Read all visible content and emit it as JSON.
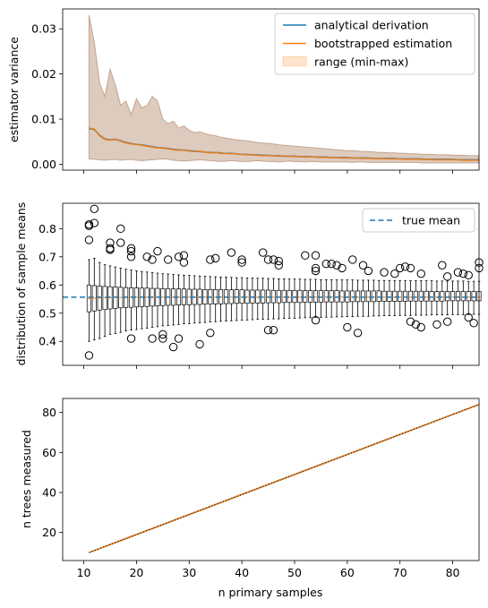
{
  "chart_data": [
    {
      "type": "line",
      "ylabel": "estimator variance",
      "xlim": [
        6,
        85
      ],
      "ylim": [
        -0.0013,
        0.0344
      ],
      "yticks": [
        "0.00",
        "0.01",
        "0.02",
        "0.03"
      ],
      "ytick_values": [
        0,
        0.01,
        0.02,
        0.03
      ],
      "legend_position": "top-right",
      "colors": {
        "analytical": "#1f77b4",
        "bootstrapped": "#ff7f0e",
        "range_fill": "#d2b9a8",
        "range_edge": "#c4a48f"
      },
      "legend": [
        "analytical derivation",
        "bootstrapped estimation",
        "range (min-max)"
      ],
      "x": [
        11,
        12,
        13,
        14,
        15,
        16,
        17,
        18,
        19,
        20,
        21,
        22,
        23,
        24,
        25,
        26,
        27,
        28,
        29,
        30,
        31,
        32,
        33,
        34,
        35,
        36,
        37,
        38,
        39,
        40,
        41,
        42,
        43,
        44,
        45,
        46,
        47,
        48,
        49,
        50,
        51,
        52,
        53,
        54,
        55,
        56,
        57,
        58,
        59,
        60,
        61,
        62,
        63,
        64,
        65,
        66,
        67,
        68,
        69,
        70,
        71,
        72,
        73,
        74,
        75,
        76,
        77,
        78,
        79,
        80,
        81,
        82,
        83,
        84,
        85
      ],
      "series": [
        {
          "name": "analytical derivation",
          "values": [
            0.0079,
            0.0077,
            0.0064,
            0.0056,
            0.0054,
            0.0055,
            0.0052,
            0.0048,
            0.0046,
            0.0044,
            0.0043,
            0.0041,
            0.0039,
            0.0037,
            0.0036,
            0.0035,
            0.0033,
            0.0032,
            0.0031,
            0.003,
            0.0029,
            0.0028,
            0.0027,
            0.0026,
            0.0026,
            0.0025,
            0.0024,
            0.0024,
            0.0023,
            0.0022,
            0.0022,
            0.0021,
            0.0021,
            0.002,
            0.002,
            0.0019,
            0.0019,
            0.0018,
            0.0018,
            0.0018,
            0.0017,
            0.0017,
            0.0017,
            0.0016,
            0.0016,
            0.0016,
            0.0015,
            0.0015,
            0.0015,
            0.0015,
            0.0014,
            0.0014,
            0.0014,
            0.0014,
            0.0013,
            0.0013,
            0.0013,
            0.0013,
            0.0013,
            0.0012,
            0.0012,
            0.0012,
            0.0012,
            0.0012,
            0.0011,
            0.0011,
            0.0011,
            0.0011,
            0.0011,
            0.0011,
            0.001,
            0.001,
            0.001,
            0.001,
            0.001
          ]
        },
        {
          "name": "bootstrapped estimation",
          "values": [
            0.008,
            0.0078,
            0.0063,
            0.0055,
            0.0053,
            0.0056,
            0.0051,
            0.0047,
            0.0045,
            0.0044,
            0.0042,
            0.004,
            0.0038,
            0.0036,
            0.0037,
            0.0034,
            0.0032,
            0.0031,
            0.0032,
            0.0029,
            0.0028,
            0.0029,
            0.0027,
            0.0025,
            0.0026,
            0.0024,
            0.0024,
            0.0023,
            0.0023,
            0.0022,
            0.0021,
            0.0021,
            0.002,
            0.0019,
            0.002,
            0.0019,
            0.0018,
            0.0018,
            0.0018,
            0.0017,
            0.0017,
            0.0016,
            0.0017,
            0.0016,
            0.0015,
            0.0015,
            0.0015,
            0.0015,
            0.0014,
            0.0014,
            0.0014,
            0.0014,
            0.0013,
            0.0013,
            0.0013,
            0.0013,
            0.0012,
            0.0012,
            0.0012,
            0.0012,
            0.0011,
            0.0011,
            0.0011,
            0.0011,
            0.0011,
            0.001,
            0.001,
            0.001,
            0.001,
            0.001,
            0.001,
            0.0009,
            0.0009,
            0.0009,
            0.0009
          ]
        }
      ],
      "range_min": [
        0.0012,
        0.0011,
        0.001,
        0.0009,
        0.001,
        0.0011,
        0.0009,
        0.001,
        0.0011,
        0.0009,
        0.0008,
        0.0009,
        0.001,
        0.0011,
        0.0012,
        0.0011,
        0.0009,
        0.0008,
        0.0007,
        0.0008,
        0.0009,
        0.001,
        0.0009,
        0.0008,
        0.0007,
        0.0006,
        0.0007,
        0.0008,
        0.0007,
        0.0006,
        0.0006,
        0.0007,
        0.0008,
        0.0007,
        0.0006,
        0.0006,
        0.0005,
        0.0006,
        0.0007,
        0.0006,
        0.0006,
        0.0005,
        0.0006,
        0.0006,
        0.0005,
        0.0005,
        0.0005,
        0.0005,
        0.0005,
        0.0005,
        0.0004,
        0.0005,
        0.0005,
        0.0004,
        0.0004,
        0.0004,
        0.0004,
        0.0004,
        0.0004,
        0.0004,
        0.0004,
        0.0004,
        0.0004,
        0.0003,
        0.0003,
        0.0003,
        0.0003,
        0.0003,
        0.0003,
        0.0003,
        0.0003,
        0.0003,
        0.0003,
        0.0003,
        0.0003
      ],
      "range_max": [
        0.033,
        0.027,
        0.018,
        0.015,
        0.021,
        0.0175,
        0.013,
        0.014,
        0.011,
        0.0145,
        0.0125,
        0.013,
        0.015,
        0.014,
        0.01,
        0.009,
        0.0095,
        0.008,
        0.0085,
        0.0075,
        0.007,
        0.0072,
        0.0068,
        0.0065,
        0.0063,
        0.006,
        0.0058,
        0.0056,
        0.0054,
        0.0053,
        0.0052,
        0.005,
        0.0048,
        0.0047,
        0.0046,
        0.0045,
        0.0043,
        0.0042,
        0.0041,
        0.004,
        0.0039,
        0.0038,
        0.0037,
        0.0036,
        0.0035,
        0.0034,
        0.0033,
        0.0032,
        0.0031,
        0.003,
        0.003,
        0.0029,
        0.0028,
        0.0028,
        0.0027,
        0.0026,
        0.0026,
        0.0025,
        0.0025,
        0.0024,
        0.0024,
        0.0023,
        0.0023,
        0.0022,
        0.0022,
        0.0022,
        0.0021,
        0.0021,
        0.0021,
        0.002,
        0.002,
        0.002,
        0.0019,
        0.0019,
        0.0019
      ]
    },
    {
      "type": "box",
      "ylabel": "distribution of sample means",
      "xlim": [
        6,
        85
      ],
      "ylim": [
        0.315,
        0.89
      ],
      "yticks": [
        "0.4",
        "0.5",
        "0.6",
        "0.7",
        "0.8"
      ],
      "ytick_values": [
        0.4,
        0.5,
        0.6,
        0.7,
        0.8
      ],
      "legend": [
        "true mean"
      ],
      "legend_position": "top-right",
      "true_mean": 0.557,
      "colors": {
        "true_mean": "#1f77b4",
        "median": "#ff7f0e",
        "box": "#000000"
      },
      "x": [
        11,
        12,
        13,
        14,
        15,
        16,
        17,
        18,
        19,
        20,
        21,
        22,
        23,
        24,
        25,
        26,
        27,
        28,
        29,
        30,
        31,
        32,
        33,
        34,
        35,
        36,
        37,
        38,
        39,
        40,
        41,
        42,
        43,
        44,
        45,
        46,
        47,
        48,
        49,
        50,
        51,
        52,
        53,
        54,
        55,
        56,
        57,
        58,
        59,
        60,
        61,
        62,
        63,
        64,
        65,
        66,
        67,
        68,
        69,
        70,
        71,
        72,
        73,
        74,
        75,
        76,
        77,
        78,
        79,
        80,
        81,
        82,
        83,
        84,
        85
      ],
      "boxes": {
        "q1": [
          0.505,
          0.508,
          0.511,
          0.513,
          0.515,
          0.517,
          0.519,
          0.52,
          0.521,
          0.522,
          0.523,
          0.524,
          0.525,
          0.526,
          0.527,
          0.528,
          0.528,
          0.529,
          0.53,
          0.53,
          0.531,
          0.531,
          0.532,
          0.532,
          0.533,
          0.533,
          0.534,
          0.534,
          0.535,
          0.535,
          0.535,
          0.536,
          0.536,
          0.536,
          0.537,
          0.537,
          0.537,
          0.538,
          0.538,
          0.538,
          0.538,
          0.539,
          0.539,
          0.539,
          0.539,
          0.54,
          0.54,
          0.54,
          0.54,
          0.54,
          0.541,
          0.541,
          0.541,
          0.541,
          0.541,
          0.542,
          0.542,
          0.542,
          0.542,
          0.542,
          0.542,
          0.543,
          0.543,
          0.543,
          0.543,
          0.543,
          0.543,
          0.543,
          0.544,
          0.544,
          0.544,
          0.544,
          0.544,
          0.544,
          0.544
        ],
        "median": [
          0.552,
          0.553,
          0.554,
          0.555,
          0.555,
          0.556,
          0.556,
          0.556,
          0.557,
          0.557,
          0.557,
          0.557,
          0.557,
          0.557,
          0.557,
          0.557,
          0.557,
          0.557,
          0.557,
          0.557,
          0.557,
          0.557,
          0.557,
          0.557,
          0.557,
          0.557,
          0.557,
          0.557,
          0.557,
          0.557,
          0.557,
          0.557,
          0.557,
          0.557,
          0.557,
          0.557,
          0.557,
          0.557,
          0.557,
          0.557,
          0.557,
          0.557,
          0.557,
          0.557,
          0.557,
          0.557,
          0.557,
          0.557,
          0.557,
          0.557,
          0.557,
          0.557,
          0.557,
          0.557,
          0.557,
          0.557,
          0.557,
          0.557,
          0.557,
          0.557,
          0.557,
          0.557,
          0.557,
          0.557,
          0.557,
          0.557,
          0.557,
          0.557,
          0.557,
          0.557,
          0.557,
          0.557,
          0.557,
          0.557,
          0.557
        ],
        "q3": [
          0.6,
          0.598,
          0.596,
          0.595,
          0.594,
          0.593,
          0.592,
          0.591,
          0.59,
          0.59,
          0.589,
          0.589,
          0.588,
          0.588,
          0.587,
          0.587,
          0.586,
          0.586,
          0.586,
          0.585,
          0.585,
          0.585,
          0.584,
          0.584,
          0.584,
          0.584,
          0.583,
          0.583,
          0.583,
          0.583,
          0.582,
          0.582,
          0.582,
          0.582,
          0.582,
          0.581,
          0.581,
          0.581,
          0.581,
          0.581,
          0.581,
          0.58,
          0.58,
          0.58,
          0.58,
          0.58,
          0.58,
          0.58,
          0.579,
          0.579,
          0.579,
          0.579,
          0.579,
          0.579,
          0.579,
          0.579,
          0.578,
          0.578,
          0.578,
          0.578,
          0.578,
          0.578,
          0.578,
          0.578,
          0.578,
          0.577,
          0.577,
          0.577,
          0.577,
          0.577,
          0.577,
          0.577,
          0.577,
          0.577,
          0.577
        ],
        "whisker_low": [
          0.4,
          0.405,
          0.41,
          0.418,
          0.425,
          0.428,
          0.432,
          0.437,
          0.44,
          0.442,
          0.445,
          0.447,
          0.45,
          0.452,
          0.455,
          0.456,
          0.458,
          0.46,
          0.462,
          0.463,
          0.465,
          0.466,
          0.467,
          0.469,
          0.47,
          0.471,
          0.472,
          0.473,
          0.474,
          0.475,
          0.476,
          0.477,
          0.478,
          0.478,
          0.479,
          0.48,
          0.48,
          0.481,
          0.482,
          0.482,
          0.483,
          0.484,
          0.484,
          0.485,
          0.485,
          0.486,
          0.486,
          0.487,
          0.487,
          0.488,
          0.488,
          0.489,
          0.489,
          0.489,
          0.49,
          0.49,
          0.491,
          0.491,
          0.491,
          0.492,
          0.492,
          0.492,
          0.493,
          0.493,
          0.493,
          0.494,
          0.494,
          0.494,
          0.494,
          0.495,
          0.495,
          0.495,
          0.495,
          0.496,
          0.496
        ],
        "whisker_high": [
          0.69,
          0.695,
          0.68,
          0.672,
          0.668,
          0.664,
          0.66,
          0.656,
          0.653,
          0.65,
          0.648,
          0.646,
          0.644,
          0.642,
          0.64,
          0.639,
          0.637,
          0.636,
          0.635,
          0.634,
          0.633,
          0.632,
          0.631,
          0.63,
          0.629,
          0.628,
          0.628,
          0.627,
          0.626,
          0.626,
          0.625,
          0.625,
          0.624,
          0.624,
          0.623,
          0.623,
          0.622,
          0.622,
          0.621,
          0.621,
          0.621,
          0.62,
          0.62,
          0.62,
          0.619,
          0.619,
          0.619,
          0.618,
          0.618,
          0.618,
          0.618,
          0.617,
          0.617,
          0.617,
          0.617,
          0.616,
          0.616,
          0.616,
          0.616,
          0.616,
          0.615,
          0.615,
          0.615,
          0.615,
          0.615,
          0.615,
          0.614,
          0.614,
          0.614,
          0.614,
          0.614,
          0.614,
          0.613,
          0.613,
          0.613
        ]
      },
      "fliers": [
        [
          11,
          0.35
        ],
        [
          11,
          0.76
        ],
        [
          11,
          0.81
        ],
        [
          11,
          0.815
        ],
        [
          12,
          0.82
        ],
        [
          12,
          0.87
        ],
        [
          15,
          0.75
        ],
        [
          15,
          0.73
        ],
        [
          15,
          0.725
        ],
        [
          17,
          0.8
        ],
        [
          17,
          0.75
        ],
        [
          19,
          0.73
        ],
        [
          19,
          0.72
        ],
        [
          19,
          0.7
        ],
        [
          19,
          0.41
        ],
        [
          22,
          0.7
        ],
        [
          23,
          0.41
        ],
        [
          23,
          0.69
        ],
        [
          24,
          0.72
        ],
        [
          25,
          0.425
        ],
        [
          25,
          0.41
        ],
        [
          26,
          0.69
        ],
        [
          27,
          0.38
        ],
        [
          28,
          0.7
        ],
        [
          28,
          0.41
        ],
        [
          29,
          0.705
        ],
        [
          29,
          0.68
        ],
        [
          32,
          0.39
        ],
        [
          34,
          0.69
        ],
        [
          34,
          0.43
        ],
        [
          35,
          0.695
        ],
        [
          38,
          0.715
        ],
        [
          40,
          0.69
        ],
        [
          40,
          0.68
        ],
        [
          44,
          0.715
        ],
        [
          45,
          0.69
        ],
        [
          45,
          0.44
        ],
        [
          46,
          0.44
        ],
        [
          46,
          0.69
        ],
        [
          47,
          0.685
        ],
        [
          47,
          0.67
        ],
        [
          52,
          0.705
        ],
        [
          54,
          0.705
        ],
        [
          54,
          0.66
        ],
        [
          54,
          0.65
        ],
        [
          54,
          0.475
        ],
        [
          56,
          0.675
        ],
        [
          57,
          0.675
        ],
        [
          58,
          0.67
        ],
        [
          59,
          0.66
        ],
        [
          60,
          0.45
        ],
        [
          61,
          0.69
        ],
        [
          62,
          0.43
        ],
        [
          63,
          0.67
        ],
        [
          64,
          0.65
        ],
        [
          67,
          0.645
        ],
        [
          69,
          0.64
        ],
        [
          70,
          0.66
        ],
        [
          71,
          0.665
        ],
        [
          72,
          0.66
        ],
        [
          72,
          0.47
        ],
        [
          73,
          0.46
        ],
        [
          74,
          0.64
        ],
        [
          74,
          0.45
        ],
        [
          77,
          0.46
        ],
        [
          78,
          0.67
        ],
        [
          79,
          0.63
        ],
        [
          79,
          0.47
        ],
        [
          81,
          0.645
        ],
        [
          82,
          0.64
        ],
        [
          83,
          0.635
        ],
        [
          83,
          0.485
        ],
        [
          84,
          0.465
        ],
        [
          85,
          0.66
        ],
        [
          85,
          0.68
        ]
      ]
    },
    {
      "type": "line",
      "xlabel": "n primary samples",
      "ylabel": "n trees measured",
      "xlim": [
        6,
        85
      ],
      "ylim": [
        6,
        87
      ],
      "xticks": [
        "10",
        "20",
        "30",
        "40",
        "50",
        "60",
        "70",
        "80"
      ],
      "xtick_values": [
        10,
        20,
        30,
        40,
        50,
        60,
        70,
        80
      ],
      "yticks": [
        "20",
        "40",
        "60",
        "80"
      ],
      "ytick_values": [
        20,
        40,
        60,
        80
      ],
      "colors": {
        "line_a": "#1f77b4",
        "line_b": "#ff7f0e",
        "dots": "#333333"
      },
      "x": [
        11,
        85
      ],
      "series": [
        {
          "values": [
            10,
            84
          ]
        }
      ]
    }
  ]
}
